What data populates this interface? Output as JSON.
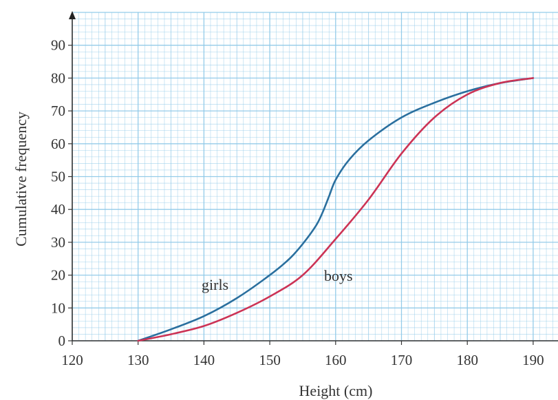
{
  "chart_data": {
    "type": "line",
    "title": "",
    "xlabel": "Height (cm)",
    "ylabel": "Cumulative frequency",
    "xlim": [
      120,
      190
    ],
    "ylim": [
      0,
      97
    ],
    "x_ticks": [
      120,
      130,
      140,
      150,
      160,
      170,
      180,
      190
    ],
    "y_ticks": [
      0,
      10,
      20,
      30,
      40,
      50,
      60,
      70,
      80,
      90
    ],
    "grid": true,
    "grid_color": "#8fc9e8",
    "series": [
      {
        "name": "girls",
        "color": "#2a6f9e",
        "x": [
          130,
          135,
          140,
          145,
          150,
          153,
          155,
          157,
          158,
          159,
          160,
          162,
          165,
          170,
          175,
          180,
          185,
          190
        ],
        "y": [
          0,
          3.5,
          7.5,
          13,
          20,
          25,
          29.5,
          35,
          39,
          44,
          49,
          55,
          61,
          68,
          72.5,
          76,
          78.5,
          80
        ]
      },
      {
        "name": "boys",
        "color": "#cc3355",
        "x": [
          130,
          135,
          140,
          145,
          150,
          155,
          160,
          165,
          170,
          175,
          180,
          185,
          190
        ],
        "y": [
          0,
          2,
          4.5,
          8.5,
          13.5,
          20,
          31,
          43,
          57,
          68,
          75,
          78.5,
          80
        ]
      }
    ]
  }
}
